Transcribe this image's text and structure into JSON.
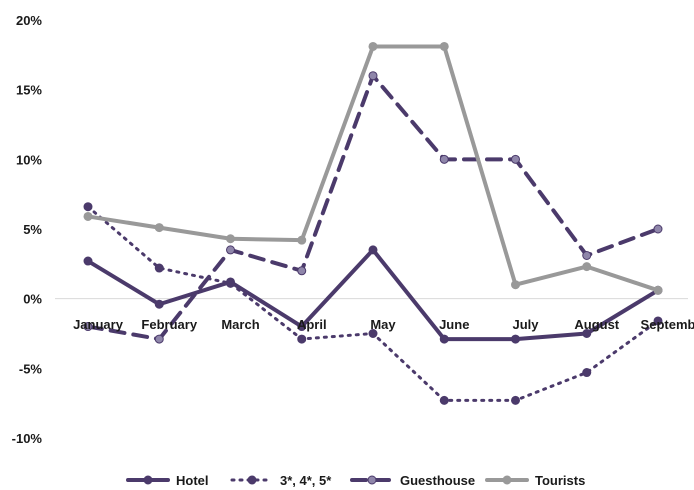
{
  "chart_data": {
    "type": "line",
    "categories": [
      "January",
      "February",
      "March",
      "April",
      "May",
      "June",
      "July",
      "August",
      "Septemb"
    ],
    "ylim": [
      -10,
      20
    ],
    "yticks": [
      -10,
      -5,
      0,
      5,
      10,
      15,
      20
    ],
    "ytick_labels": [
      "-10%",
      "-5%",
      "0%",
      "5%",
      "10%",
      "15%",
      "20%"
    ],
    "grid": false,
    "legend_position": "bottom",
    "series": [
      {
        "name": "Hotel",
        "values": [
          2.7,
          -0.4,
          1.2,
          -2.0,
          3.5,
          -2.9,
          -2.9,
          -2.5,
          0.6
        ],
        "color": "#4b3a6b",
        "style": "solid",
        "marker_fill": "#4b3a6b"
      },
      {
        "name": "3*, 4*, 5*",
        "values": [
          6.6,
          2.2,
          1.1,
          -2.9,
          -2.5,
          -7.3,
          -7.3,
          -5.3,
          -1.6
        ],
        "color": "#4b3a6b",
        "style": "dotted",
        "marker_fill": "#4b3a6b"
      },
      {
        "name": "Guesthouse",
        "values": [
          -2.0,
          -2.9,
          3.5,
          2.0,
          16.0,
          10.0,
          10.0,
          3.1,
          5.0
        ],
        "color": "#4b3a6b",
        "style": "dashed",
        "marker_fill": "#8f86aa"
      },
      {
        "name": "Tourists",
        "values": [
          5.9,
          5.1,
          4.3,
          4.2,
          18.1,
          18.1,
          1.0,
          2.3,
          0.6
        ],
        "color": "#999999",
        "style": "solid",
        "marker_fill": "#999999"
      }
    ]
  }
}
